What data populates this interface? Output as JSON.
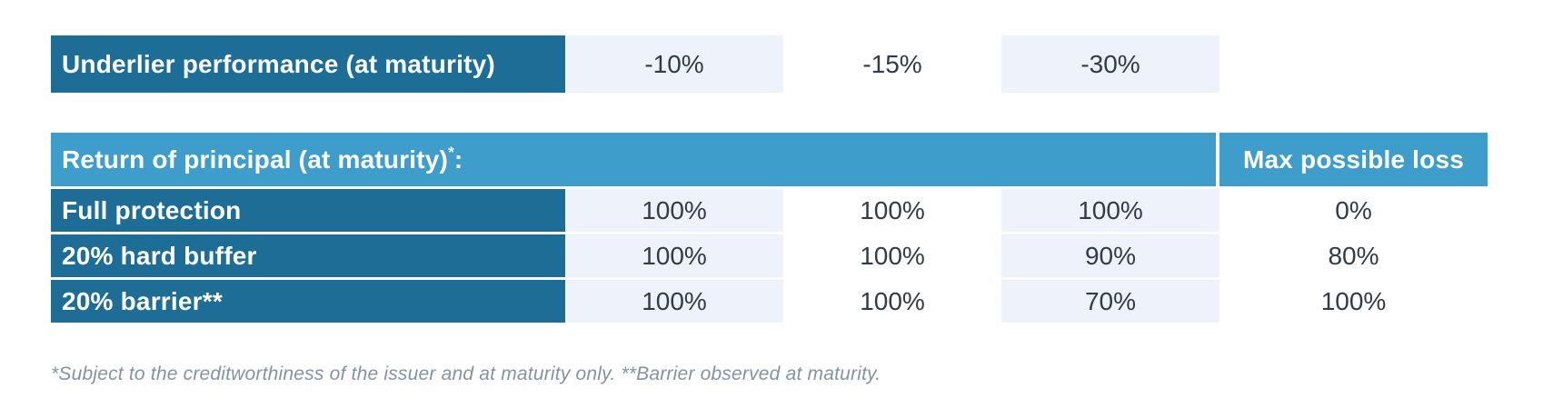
{
  "colors": {
    "dark_blue": "#1e6d96",
    "light_blue": "#3f9dcb",
    "light_cell_bg": "#edf2fb",
    "value_text": "#333b48",
    "footnote_text": "#8294a1"
  },
  "performance_table": {
    "header": "Underlier performance (at maturity)",
    "values": [
      "-10%",
      "-15%",
      "-30%"
    ]
  },
  "principal_table": {
    "title_main": "Return of principal (at maturity)",
    "title_sup": "*",
    "title_suffix": ":",
    "max_loss_header": "Max possible loss",
    "rows": [
      {
        "label": "Full protection",
        "values": [
          "100%",
          "100%",
          "100%"
        ],
        "max_loss": "0%"
      },
      {
        "label": "20% hard buffer",
        "values": [
          "100%",
          "100%",
          "90%"
        ],
        "max_loss": "80%"
      },
      {
        "label": "20% barrier**",
        "values": [
          "100%",
          "100%",
          "70%"
        ],
        "max_loss": "100%"
      }
    ]
  },
  "footnote": "*Subject to the creditworthiness of the issuer and at maturity only. **Barrier observed at maturity.",
  "chart_data": {
    "type": "table",
    "columns": [
      "Underlier performance (at maturity)",
      "-10%",
      "-15%",
      "-30%",
      "Max possible loss"
    ],
    "rows": [
      [
        "Full protection",
        "100%",
        "100%",
        "100%",
        "0%"
      ],
      [
        "20% hard buffer",
        "100%",
        "100%",
        "90%",
        "80%"
      ],
      [
        "20% barrier**",
        "100%",
        "100%",
        "70%",
        "100%"
      ]
    ]
  }
}
